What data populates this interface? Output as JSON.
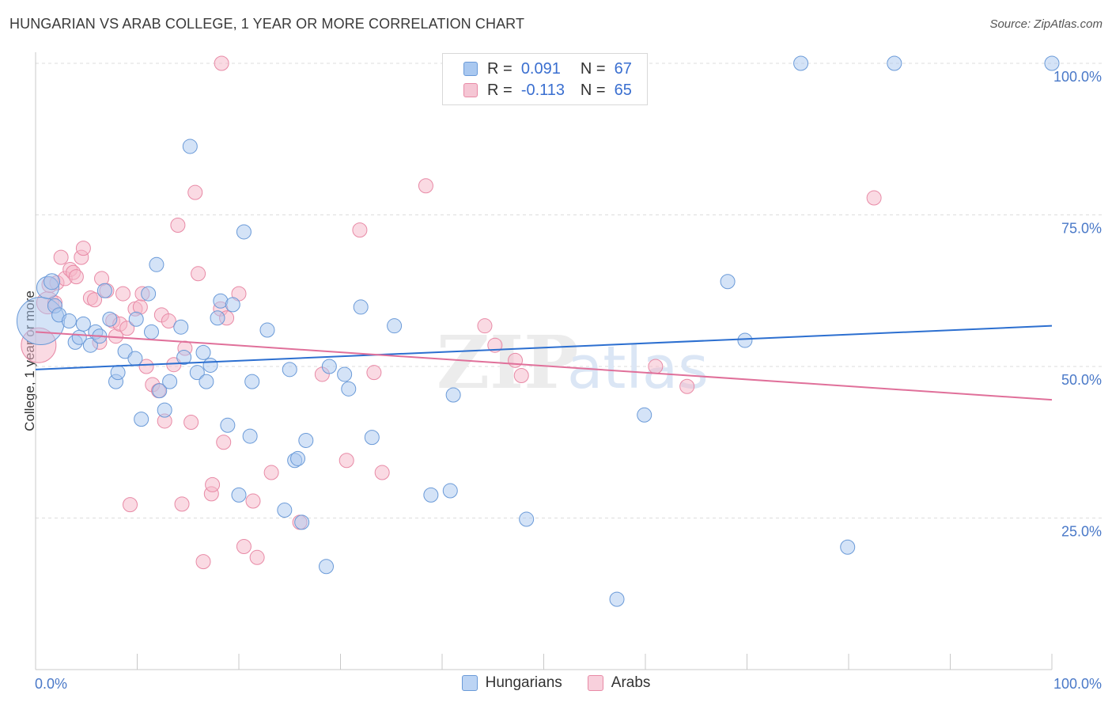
{
  "title": "HUNGARIAN VS ARAB COLLEGE, 1 YEAR OR MORE CORRELATION CHART",
  "source": "Source: ZipAtlas.com",
  "watermark": {
    "zip": "ZIP",
    "atlas": "atlas"
  },
  "colors": {
    "blue_fill": "#a9c8f0",
    "blue_stroke": "#6a9ad8",
    "blue_line": "#2c6fd0",
    "pink_fill": "#f5b6c8",
    "pink_stroke": "#e88aa6",
    "pink_line": "#e0709a",
    "grid": "#dddddd",
    "tick_text": "#4a79c8"
  },
  "legend": {
    "rows": [
      {
        "r_label": "R =",
        "r_value": "0.091",
        "n_label": "N =",
        "n_value": "67"
      },
      {
        "r_label": "R =",
        "r_value": "-0.113",
        "n_label": "N =",
        "n_value": "65"
      }
    ]
  },
  "series_labels": {
    "hungarians": "Hungarians",
    "arabs": "Arabs"
  },
  "chart_data": {
    "type": "scatter",
    "title": "HUNGARIAN VS ARAB COLLEGE, 1 YEAR OR MORE CORRELATION CHART",
    "xlabel": "",
    "ylabel": "College, 1 year or more",
    "xlim": [
      0,
      100
    ],
    "ylim": [
      0,
      104
    ],
    "x_ticks_labels": [
      "0.0%",
      "100.0%"
    ],
    "y_ticks": [
      25,
      50,
      75,
      100
    ],
    "y_ticks_labels": [
      "25.0%",
      "50.0%",
      "75.0%",
      "100.0%"
    ],
    "grid": true,
    "legend_position": "top-center",
    "series": [
      {
        "name": "Hungarians",
        "r": 0.091,
        "n": 67,
        "trend": {
          "x": [
            0,
            100
          ],
          "y": [
            49.5,
            56.7
          ]
        },
        "points": [
          [
            0.5,
            57.5,
            30
          ],
          [
            1.2,
            63,
            14
          ],
          [
            1.6,
            64,
            10
          ],
          [
            1.9,
            60,
            9
          ],
          [
            2.3,
            58.5,
            9
          ],
          [
            3.3,
            57.5,
            9
          ],
          [
            3.9,
            54,
            9
          ],
          [
            4.3,
            54.8,
            9
          ],
          [
            4.7,
            57,
            9
          ],
          [
            5.4,
            53.5,
            9
          ],
          [
            5.9,
            55.7,
            9
          ],
          [
            6.3,
            55,
            9
          ],
          [
            6.8,
            62.5,
            9
          ],
          [
            7.3,
            57.8,
            9
          ],
          [
            7.9,
            47.5,
            9
          ],
          [
            8.1,
            49,
            9
          ],
          [
            8.8,
            52.5,
            9
          ],
          [
            9.8,
            51.3,
            9
          ],
          [
            9.9,
            57.8,
            9
          ],
          [
            10.4,
            41.3,
            9
          ],
          [
            11.1,
            62,
            9
          ],
          [
            11.4,
            55.7,
            9
          ],
          [
            11.9,
            66.8,
            9
          ],
          [
            12.2,
            46,
            9
          ],
          [
            12.7,
            42.8,
            9
          ],
          [
            13.2,
            47.5,
            9
          ],
          [
            14.3,
            56.5,
            9
          ],
          [
            14.6,
            51.5,
            9
          ],
          [
            15.2,
            86.3,
            9
          ],
          [
            15.9,
            49,
            9
          ],
          [
            16.5,
            52.3,
            9
          ],
          [
            17.2,
            50.2,
            9
          ],
          [
            17.9,
            58,
            9
          ],
          [
            18.2,
            60.8,
            9
          ],
          [
            18.9,
            40.3,
            9
          ],
          [
            19.4,
            60.2,
            9
          ],
          [
            20.0,
            28.8,
            9
          ],
          [
            20.5,
            72.2,
            9
          ],
          [
            21.1,
            38.5,
            9
          ],
          [
            21.3,
            47.5,
            9
          ],
          [
            22.8,
            56,
            9
          ],
          [
            24.5,
            26.3,
            9
          ],
          [
            25.0,
            49.5,
            9
          ],
          [
            25.5,
            34.5,
            9
          ],
          [
            26.2,
            24.3,
            9
          ],
          [
            26.6,
            37.8,
            9
          ],
          [
            28.6,
            17,
            9
          ],
          [
            28.9,
            50,
            9
          ],
          [
            30.4,
            48.7,
            9
          ],
          [
            30.8,
            46.3,
            9
          ],
          [
            32.0,
            59.8,
            9
          ],
          [
            33.1,
            38.3,
            9
          ],
          [
            35.3,
            56.7,
            9
          ],
          [
            38.9,
            28.8,
            9
          ],
          [
            40.8,
            29.5,
            9
          ],
          [
            41.1,
            45.3,
            9
          ],
          [
            48.3,
            24.8,
            9
          ],
          [
            57.2,
            11.6,
            9
          ],
          [
            59.9,
            42,
            9
          ],
          [
            68.1,
            64,
            9
          ],
          [
            69.8,
            54.3,
            9
          ],
          [
            75.3,
            100,
            9
          ],
          [
            79.9,
            20.2,
            9
          ],
          [
            84.5,
            100,
            9
          ],
          [
            100,
            100,
            9
          ],
          [
            25.8,
            34.8,
            9
          ],
          [
            16.8,
            47.5,
            9
          ]
        ]
      },
      {
        "name": "Arabs",
        "r": -0.113,
        "n": 65,
        "trend": {
          "x": [
            0,
            100
          ],
          "y": [
            55.7,
            44.5
          ]
        },
        "points": [
          [
            0.3,
            53.5,
            22
          ],
          [
            1.2,
            60.5,
            14
          ],
          [
            1.4,
            63.5,
            10
          ],
          [
            1.9,
            60.5,
            9
          ],
          [
            2.1,
            63.8,
            9
          ],
          [
            2.5,
            68,
            9
          ],
          [
            2.9,
            64.5,
            9
          ],
          [
            3.4,
            66,
            9
          ],
          [
            3.7,
            65.5,
            9
          ],
          [
            4.0,
            64.8,
            9
          ],
          [
            4.5,
            68,
            9
          ],
          [
            4.7,
            69.5,
            9
          ],
          [
            5.4,
            61.3,
            9
          ],
          [
            5.8,
            61,
            9
          ],
          [
            6.3,
            54,
            9
          ],
          [
            6.5,
            64.5,
            9
          ],
          [
            7.0,
            62.5,
            9
          ],
          [
            7.6,
            57.5,
            9
          ],
          [
            7.9,
            55,
            9
          ],
          [
            8.3,
            57,
            9
          ],
          [
            8.6,
            62,
            9
          ],
          [
            9.0,
            56.3,
            9
          ],
          [
            9.3,
            27.2,
            9
          ],
          [
            9.8,
            59.5,
            9
          ],
          [
            10.3,
            59.8,
            9
          ],
          [
            10.5,
            62,
            9
          ],
          [
            10.9,
            50,
            9
          ],
          [
            11.5,
            47,
            9
          ],
          [
            12.1,
            46,
            9
          ],
          [
            12.4,
            58.5,
            9
          ],
          [
            12.7,
            41,
            9
          ],
          [
            13.1,
            57.5,
            9
          ],
          [
            13.6,
            50.3,
            9
          ],
          [
            14.0,
            73.3,
            9
          ],
          [
            14.4,
            27.3,
            9
          ],
          [
            14.7,
            53,
            9
          ],
          [
            15.3,
            40.8,
            9
          ],
          [
            15.7,
            78.7,
            9
          ],
          [
            16.0,
            65.3,
            9
          ],
          [
            16.5,
            17.8,
            9
          ],
          [
            17.3,
            29,
            9
          ],
          [
            17.4,
            30.5,
            9
          ],
          [
            18.2,
            59.5,
            9
          ],
          [
            18.5,
            37.5,
            9
          ],
          [
            18.8,
            58,
            9
          ],
          [
            18.3,
            100,
            9
          ],
          [
            20.0,
            62,
            9
          ],
          [
            20.5,
            20.3,
            9
          ],
          [
            21.4,
            27.8,
            9
          ],
          [
            21.8,
            18.5,
            9
          ],
          [
            23.2,
            32.5,
            9
          ],
          [
            26.0,
            24.3,
            9
          ],
          [
            28.2,
            48.7,
            9
          ],
          [
            30.6,
            34.5,
            9
          ],
          [
            31.9,
            72.5,
            9
          ],
          [
            33.3,
            49,
            9
          ],
          [
            34.1,
            32.5,
            9
          ],
          [
            38.4,
            79.8,
            9
          ],
          [
            44.2,
            56.7,
            9
          ],
          [
            45.2,
            53.5,
            9
          ],
          [
            47.2,
            51,
            9
          ],
          [
            47.8,
            48.5,
            9
          ],
          [
            61.0,
            50,
            9
          ],
          [
            64.1,
            46.7,
            9
          ],
          [
            82.5,
            77.8,
            9
          ]
        ]
      }
    ]
  }
}
